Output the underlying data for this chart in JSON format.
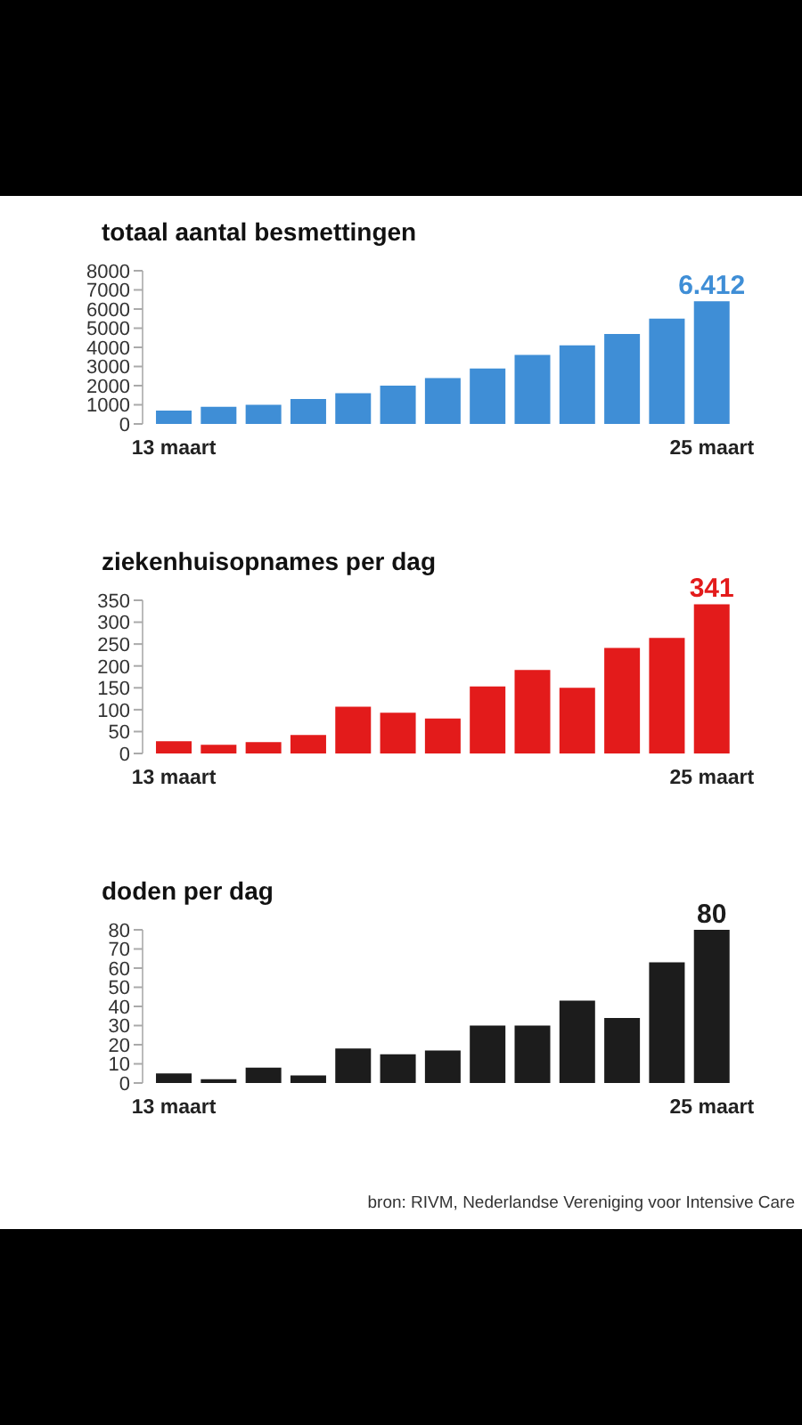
{
  "chart_data": [
    {
      "type": "bar",
      "title": "totaal aantal besmettingen",
      "categories": [
        "13 maart",
        null,
        null,
        null,
        null,
        null,
        null,
        null,
        null,
        null,
        null,
        null,
        "25 maart"
      ],
      "values": [
        700,
        900,
        1000,
        1300,
        1600,
        2000,
        2400,
        2900,
        3600,
        4100,
        4700,
        5500,
        6412
      ],
      "value_labels": [
        null,
        null,
        null,
        null,
        null,
        null,
        null,
        null,
        null,
        null,
        null,
        null,
        "6.412"
      ],
      "color": "#3f8ed6",
      "ylim": [
        0,
        8000
      ],
      "yticks": [
        0,
        1000,
        2000,
        3000,
        4000,
        5000,
        6000,
        7000,
        8000
      ]
    },
    {
      "type": "bar",
      "title": "ziekenhuisopnames per dag",
      "categories": [
        "13 maart",
        null,
        null,
        null,
        null,
        null,
        null,
        null,
        null,
        null,
        null,
        null,
        "25 maart"
      ],
      "values": [
        28,
        20,
        26,
        42,
        107,
        93,
        80,
        153,
        191,
        150,
        241,
        264,
        341
      ],
      "value_labels": [
        null,
        null,
        null,
        null,
        null,
        null,
        null,
        null,
        null,
        null,
        null,
        null,
        "341"
      ],
      "color": "#e31b1b",
      "ylim": [
        0,
        350
      ],
      "yticks": [
        0,
        50,
        100,
        150,
        200,
        250,
        300,
        350
      ]
    },
    {
      "type": "bar",
      "title": "doden per dag",
      "categories": [
        "13 maart",
        null,
        null,
        null,
        null,
        null,
        null,
        null,
        null,
        null,
        null,
        null,
        "25 maart"
      ],
      "values": [
        5,
        2,
        8,
        4,
        18,
        15,
        17,
        30,
        30,
        43,
        34,
        63,
        80
      ],
      "value_labels": [
        null,
        null,
        null,
        null,
        null,
        null,
        null,
        null,
        null,
        null,
        null,
        null,
        "80"
      ],
      "color": "#1c1c1c",
      "ylim": [
        0,
        80
      ],
      "yticks": [
        0,
        10,
        20,
        30,
        40,
        50,
        60,
        70,
        80
      ],
      "annotations": [
        "bron: RIVM, Nederlandse Vereniging voor Intensive Care"
      ]
    }
  ]
}
